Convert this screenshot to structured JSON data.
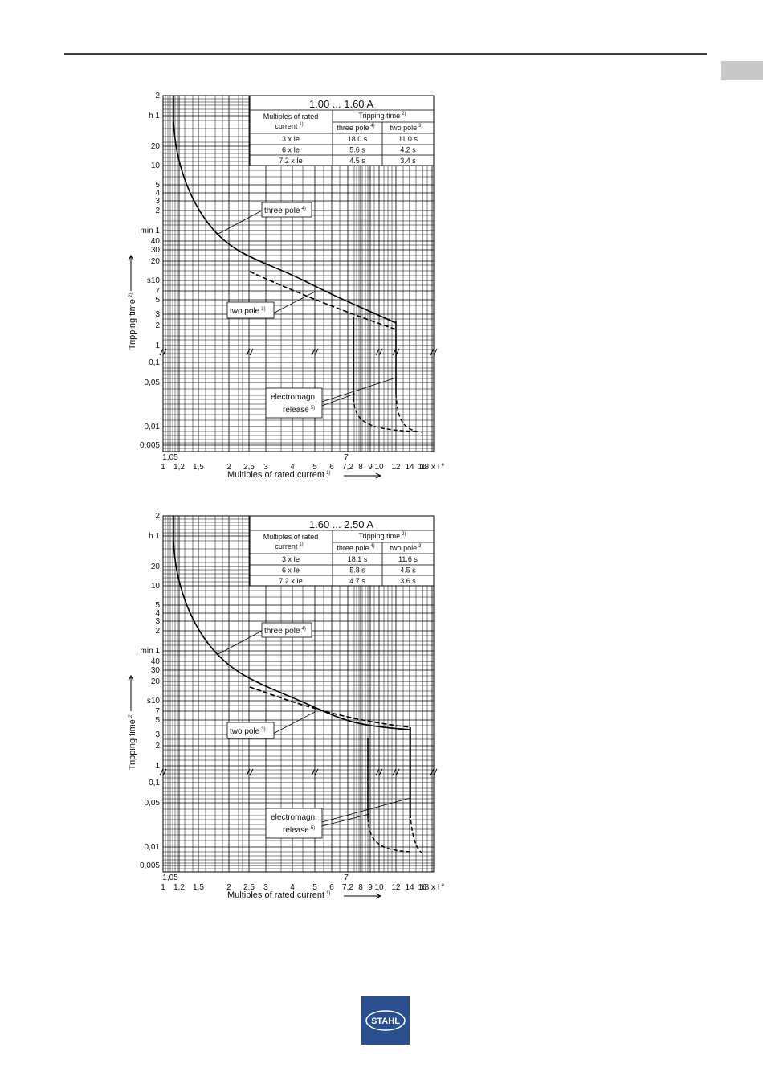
{
  "logo": "STAHL",
  "axes": {
    "yticks": [
      "2",
      "h 1",
      "20",
      "10",
      "5",
      "4",
      "3",
      "2",
      "min 1",
      "40",
      "30",
      "20",
      "s10",
      "7",
      "5",
      "3",
      "2",
      "1",
      "0,1",
      "0,05",
      "0,01",
      "0,005"
    ],
    "xticks": [
      "1",
      "1,2",
      "1,5",
      "2",
      "2,5",
      "3",
      "4",
      "5",
      "6",
      "7,2",
      "8",
      "9",
      "10",
      "12",
      "14",
      "16",
      "18 x I"
    ],
    "x_sub": "e",
    "x_extra": [
      "1,05",
      "7"
    ],
    "ylabel": "Tripping time",
    "ylabel_sup": "2)",
    "xlabel": "Multiples of rated current",
    "xlabel_sup": "1)"
  },
  "charts": [
    {
      "title": "1.00 ... 1.60 A",
      "table": {
        "col1": [
          "Multiples of rated",
          "current"
        ],
        "col1_sup": "1)",
        "group": "Tripping time",
        "group_sup": "2)",
        "col2": "three pole",
        "col2_sup": "4)",
        "col3": "two pole",
        "col3_sup": "3)",
        "rows": [
          [
            "3 x Ie",
            "18.0 s",
            "11.0 s"
          ],
          [
            "6 x Ie",
            "5.6 s",
            "4.2 s"
          ],
          [
            "7.2 x Ie",
            "4.5 s",
            "3.4 s"
          ]
        ]
      },
      "three_pole": "three pole",
      "three_pole_sup": "4)",
      "two_pole": "two pole",
      "two_pole_sup": "3)",
      "em": "electromagn.",
      "release": "release",
      "release_sup": "5)"
    },
    {
      "title": "1.60 ... 2.50 A",
      "table": {
        "col1": [
          "Multiples of rated",
          "current"
        ],
        "col1_sup": "1)",
        "group": "Tripping time",
        "group_sup": "2)",
        "col2": "three pole",
        "col2_sup": "4)",
        "col3": "two pole",
        "col3_sup": "3)",
        "rows": [
          [
            "3 x Ie",
            "18.1 s",
            "11.6 s"
          ],
          [
            "6 x Ie",
            "5.8 s",
            "4.5 s"
          ],
          [
            "7.2 x Ie",
            "4.7 s",
            "3.6 s"
          ]
        ]
      },
      "three_pole": "three pole",
      "three_pole_sup": "4)",
      "two_pole": "two pole",
      "two_pole_sup": "3)",
      "em": "electromagn.",
      "release": "release",
      "release_sup": "5)"
    }
  ]
}
